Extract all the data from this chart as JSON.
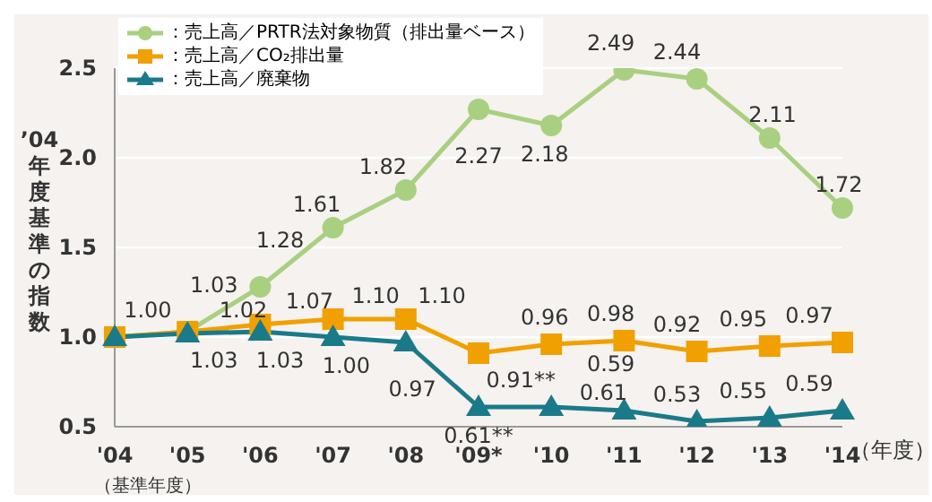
{
  "chart_data": {
    "type": "line",
    "ylabel": "’04年度基準の指数",
    "xlabel": "（年度）",
    "categories": [
      "'04",
      "'05",
      "'06",
      "'07",
      "'08",
      "'09*",
      "'10",
      "'11",
      "'12",
      "'13",
      "'14"
    ],
    "series": [
      {
        "name": "：売上高／PRTR法対象物質（排出量ベース）",
        "color": "#a8d080",
        "marker": "circle",
        "values": [
          1.0,
          1.03,
          1.28,
          1.61,
          1.82,
          2.27,
          2.18,
          2.49,
          2.44,
          2.11,
          1.72
        ],
        "value_labels": [
          "1.00",
          "1.03",
          "1.28",
          "1.61",
          "1.82",
          "2.27",
          "2.18",
          "2.49",
          "2.44",
          "2.11",
          "1.72"
        ]
      },
      {
        "name": "：売上高／CO₂排出量",
        "color": "#f0a000",
        "marker": "square",
        "values": [
          1.0,
          1.03,
          1.07,
          1.1,
          1.1,
          0.91,
          0.96,
          0.98,
          0.92,
          0.95,
          0.97
        ],
        "value_labels": [
          null,
          "1.03",
          "1.07",
          "1.10",
          "1.10",
          "0.91**",
          "0.96",
          "0.98",
          "0.92",
          "0.95",
          "0.97"
        ]
      },
      {
        "name": "：売上高／廃棄物",
        "color": "#1a7a8a",
        "marker": "triangle",
        "values": [
          1.0,
          1.02,
          1.03,
          1.0,
          0.97,
          0.61,
          0.61,
          0.59,
          0.53,
          0.55,
          0.59
        ],
        "value_labels": [
          null,
          "1.02",
          "1.03",
          "1.00",
          "0.97",
          "0.61**",
          "0.61",
          "0.59",
          "0.53",
          "0.55",
          "0.59"
        ]
      }
    ],
    "ylim": [
      0.5,
      2.5
    ],
    "yticks": [
      0.5,
      {
        "value": 1,
        "label": "1.0"
      },
      1.5,
      {
        "value": 2,
        "label": "2.0"
      },
      2.5
    ],
    "grid": "y",
    "legend": "top left",
    "line_style": "solid",
    "annotations": [
      "（基準年度）"
    ]
  }
}
